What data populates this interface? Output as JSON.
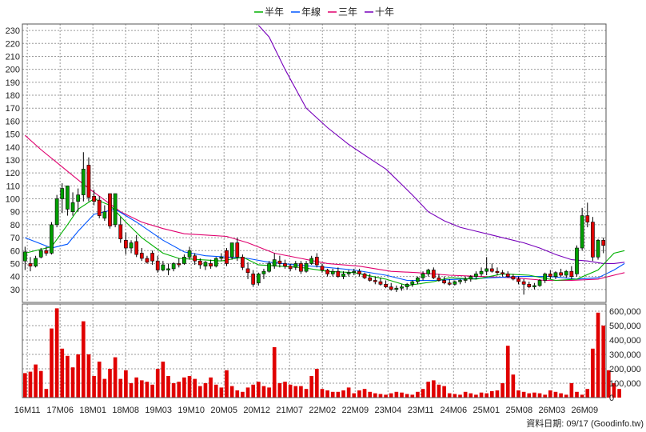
{
  "chart_data": {
    "type": "candlestick",
    "legend": [
      {
        "name": "半年",
        "color": "#00b000"
      },
      {
        "name": "年線",
        "color": "#0055ff"
      },
      {
        "name": "三年",
        "color": "#e0006e"
      },
      {
        "name": "十年",
        "color": "#7700bb"
      }
    ],
    "x_ticks": [
      "16M11",
      "17M06",
      "18M01",
      "18M08",
      "19M03",
      "19M10",
      "20M05",
      "20M12",
      "21M07",
      "22M02",
      "22M09",
      "23M04",
      "23M11",
      "24M06",
      "25M01",
      "25M08",
      "26M03",
      "26M09"
    ],
    "price_axis": {
      "ylim": [
        20,
        235
      ],
      "ticks": [
        30,
        40,
        50,
        60,
        70,
        80,
        90,
        100,
        110,
        120,
        130,
        140,
        150,
        160,
        170,
        180,
        190,
        200,
        210,
        220,
        230
      ]
    },
    "volume_axis": {
      "ylim": [
        0,
        650000
      ],
      "ticks": [
        0,
        100000,
        200000,
        300000,
        400000,
        500000,
        600000
      ],
      "tick_labels": [
        "0",
        "100,000",
        "200,000",
        "300,000",
        "400,000",
        "500,000",
        "600,000"
      ]
    },
    "footer": "資料日期: 09/17  (Goodinfo.tw)",
    "colors": {
      "up": "#00a000",
      "down": "#e00000",
      "volume": "#e00000",
      "grid": "#9a9a9a"
    },
    "candles": [
      {
        "o": 52,
        "h": 63,
        "l": 45,
        "c": 59
      },
      {
        "o": 50,
        "h": 55,
        "l": 44,
        "c": 48
      },
      {
        "o": 48,
        "h": 56,
        "l": 47,
        "c": 54
      },
      {
        "o": 55,
        "h": 62,
        "l": 54,
        "c": 60
      },
      {
        "o": 60,
        "h": 63,
        "l": 56,
        "c": 58
      },
      {
        "o": 58,
        "h": 82,
        "l": 57,
        "c": 80
      },
      {
        "o": 80,
        "h": 103,
        "l": 78,
        "c": 100
      },
      {
        "o": 100,
        "h": 112,
        "l": 89,
        "c": 108
      },
      {
        "o": 92,
        "h": 110,
        "l": 87,
        "c": 110
      },
      {
        "o": 90,
        "h": 105,
        "l": 87,
        "c": 97
      },
      {
        "o": 98,
        "h": 108,
        "l": 90,
        "c": 103
      },
      {
        "o": 103,
        "h": 136,
        "l": 98,
        "c": 123
      },
      {
        "o": 126,
        "h": 132,
        "l": 98,
        "c": 101
      },
      {
        "o": 102,
        "h": 107,
        "l": 95,
        "c": 98
      },
      {
        "o": 99,
        "h": 102,
        "l": 85,
        "c": 87
      },
      {
        "o": 85,
        "h": 95,
        "l": 83,
        "c": 90
      },
      {
        "o": 104,
        "h": 104,
        "l": 77,
        "c": 79
      },
      {
        "o": 80,
        "h": 104,
        "l": 78,
        "c": 104
      },
      {
        "o": 80,
        "h": 86,
        "l": 66,
        "c": 69
      },
      {
        "o": 68,
        "h": 74,
        "l": 57,
        "c": 62
      },
      {
        "o": 62,
        "h": 68,
        "l": 58,
        "c": 66
      },
      {
        "o": 67,
        "h": 72,
        "l": 55,
        "c": 57
      },
      {
        "o": 58,
        "h": 62,
        "l": 52,
        "c": 54
      },
      {
        "o": 54,
        "h": 56,
        "l": 50,
        "c": 51
      },
      {
        "o": 58,
        "h": 60,
        "l": 49,
        "c": 52
      },
      {
        "o": 52,
        "h": 56,
        "l": 43,
        "c": 45
      },
      {
        "o": 45,
        "h": 52,
        "l": 44,
        "c": 49
      },
      {
        "o": 45,
        "h": 50,
        "l": 41,
        "c": 46
      },
      {
        "o": 46,
        "h": 51,
        "l": 44,
        "c": 50
      },
      {
        "o": 50,
        "h": 54,
        "l": 47,
        "c": 49
      },
      {
        "o": 50,
        "h": 57,
        "l": 49,
        "c": 55
      },
      {
        "o": 55,
        "h": 63,
        "l": 53,
        "c": 60
      },
      {
        "o": 56,
        "h": 58,
        "l": 49,
        "c": 52
      },
      {
        "o": 52,
        "h": 54,
        "l": 46,
        "c": 49
      },
      {
        "o": 48,
        "h": 52,
        "l": 45,
        "c": 51
      },
      {
        "o": 50,
        "h": 53,
        "l": 46,
        "c": 48
      },
      {
        "o": 48,
        "h": 55,
        "l": 47,
        "c": 54
      },
      {
        "o": 54,
        "h": 58,
        "l": 52,
        "c": 55
      },
      {
        "o": 60,
        "h": 62,
        "l": 48,
        "c": 50
      },
      {
        "o": 55,
        "h": 66,
        "l": 53,
        "c": 66
      },
      {
        "o": 66,
        "h": 70,
        "l": 52,
        "c": 55
      },
      {
        "o": 55,
        "h": 57,
        "l": 45,
        "c": 47
      },
      {
        "o": 46,
        "h": 51,
        "l": 38,
        "c": 43
      },
      {
        "o": 42,
        "h": 45,
        "l": 32,
        "c": 34
      },
      {
        "o": 35,
        "h": 43,
        "l": 33,
        "c": 42
      },
      {
        "o": 42,
        "h": 46,
        "l": 38,
        "c": 44
      },
      {
        "o": 44,
        "h": 52,
        "l": 43,
        "c": 50
      },
      {
        "o": 48,
        "h": 58,
        "l": 46,
        "c": 53
      },
      {
        "o": 52,
        "h": 56,
        "l": 47,
        "c": 50
      },
      {
        "o": 50,
        "h": 53,
        "l": 46,
        "c": 48
      },
      {
        "o": 48,
        "h": 50,
        "l": 44,
        "c": 46
      },
      {
        "o": 47,
        "h": 52,
        "l": 45,
        "c": 50
      },
      {
        "o": 50,
        "h": 52,
        "l": 42,
        "c": 44
      },
      {
        "o": 44,
        "h": 52,
        "l": 43,
        "c": 50
      },
      {
        "o": 50,
        "h": 56,
        "l": 49,
        "c": 54
      },
      {
        "o": 55,
        "h": 58,
        "l": 47,
        "c": 49
      },
      {
        "o": 48,
        "h": 50,
        "l": 43,
        "c": 45
      },
      {
        "o": 45,
        "h": 46,
        "l": 40,
        "c": 42
      },
      {
        "o": 42,
        "h": 46,
        "l": 40,
        "c": 44
      },
      {
        "o": 44,
        "h": 47,
        "l": 39,
        "c": 40
      },
      {
        "o": 40,
        "h": 44,
        "l": 38,
        "c": 42
      },
      {
        "o": 42,
        "h": 45,
        "l": 40,
        "c": 43
      },
      {
        "o": 43,
        "h": 46,
        "l": 41,
        "c": 44
      },
      {
        "o": 44,
        "h": 46,
        "l": 40,
        "c": 42
      },
      {
        "o": 42,
        "h": 43,
        "l": 38,
        "c": 39
      },
      {
        "o": 39,
        "h": 42,
        "l": 36,
        "c": 37
      },
      {
        "o": 37,
        "h": 40,
        "l": 34,
        "c": 36
      },
      {
        "o": 36,
        "h": 39,
        "l": 33,
        "c": 34
      },
      {
        "o": 34,
        "h": 37,
        "l": 31,
        "c": 32
      },
      {
        "o": 32,
        "h": 35,
        "l": 29,
        "c": 30
      },
      {
        "o": 30,
        "h": 33,
        "l": 28,
        "c": 31
      },
      {
        "o": 31,
        "h": 34,
        "l": 29,
        "c": 32
      },
      {
        "o": 32,
        "h": 35,
        "l": 30,
        "c": 34
      },
      {
        "o": 34,
        "h": 37,
        "l": 32,
        "c": 36
      },
      {
        "o": 36,
        "h": 40,
        "l": 34,
        "c": 39
      },
      {
        "o": 39,
        "h": 44,
        "l": 37,
        "c": 42
      },
      {
        "o": 42,
        "h": 46,
        "l": 40,
        "c": 45
      },
      {
        "o": 45,
        "h": 47,
        "l": 38,
        "c": 39
      },
      {
        "o": 39,
        "h": 42,
        "l": 36,
        "c": 37
      },
      {
        "o": 37,
        "h": 40,
        "l": 34,
        "c": 35
      },
      {
        "o": 35,
        "h": 38,
        "l": 33,
        "c": 34
      },
      {
        "o": 34,
        "h": 37,
        "l": 33,
        "c": 36
      },
      {
        "o": 36,
        "h": 38,
        "l": 34,
        "c": 37
      },
      {
        "o": 37,
        "h": 40,
        "l": 35,
        "c": 38
      },
      {
        "o": 38,
        "h": 41,
        "l": 36,
        "c": 40
      },
      {
        "o": 40,
        "h": 44,
        "l": 38,
        "c": 42
      },
      {
        "o": 42,
        "h": 47,
        "l": 40,
        "c": 44
      },
      {
        "o": 44,
        "h": 55,
        "l": 41,
        "c": 46
      },
      {
        "o": 46,
        "h": 50,
        "l": 43,
        "c": 44
      },
      {
        "o": 44,
        "h": 47,
        "l": 41,
        "c": 43
      },
      {
        "o": 43,
        "h": 45,
        "l": 40,
        "c": 42
      },
      {
        "o": 42,
        "h": 44,
        "l": 39,
        "c": 40
      },
      {
        "o": 40,
        "h": 42,
        "l": 37,
        "c": 38
      },
      {
        "o": 38,
        "h": 40,
        "l": 34,
        "c": 36
      },
      {
        "o": 36,
        "h": 38,
        "l": 26,
        "c": 34
      },
      {
        "o": 34,
        "h": 36,
        "l": 31,
        "c": 32
      },
      {
        "o": 32,
        "h": 35,
        "l": 30,
        "c": 33
      },
      {
        "o": 33,
        "h": 38,
        "l": 32,
        "c": 37
      },
      {
        "o": 37,
        "h": 43,
        "l": 35,
        "c": 42
      },
      {
        "o": 42,
        "h": 45,
        "l": 38,
        "c": 40
      },
      {
        "o": 40,
        "h": 44,
        "l": 38,
        "c": 43
      },
      {
        "o": 43,
        "h": 46,
        "l": 40,
        "c": 41
      },
      {
        "o": 41,
        "h": 45,
        "l": 39,
        "c": 44
      },
      {
        "o": 44,
        "h": 48,
        "l": 38,
        "c": 40
      },
      {
        "o": 42,
        "h": 64,
        "l": 40,
        "c": 62
      },
      {
        "o": 62,
        "h": 93,
        "l": 60,
        "c": 87
      },
      {
        "o": 87,
        "h": 97,
        "l": 78,
        "c": 82
      },
      {
        "o": 82,
        "h": 86,
        "l": 52,
        "c": 55
      },
      {
        "o": 55,
        "h": 69,
        "l": 53,
        "c": 68
      },
      {
        "o": 68,
        "h": 70,
        "l": 58,
        "c": 64
      }
    ],
    "volumes": [
      170000,
      180000,
      230000,
      185000,
      60000,
      480000,
      620000,
      340000,
      290000,
      210000,
      300000,
      530000,
      300000,
      150000,
      250000,
      130000,
      200000,
      280000,
      130000,
      190000,
      100000,
      140000,
      120000,
      110000,
      90000,
      200000,
      250000,
      150000,
      100000,
      110000,
      140000,
      150000,
      130000,
      80000,
      100000,
      140000,
      90000,
      70000,
      190000,
      80000,
      50000,
      40000,
      70000,
      90000,
      110000,
      80000,
      70000,
      350000,
      100000,
      110000,
      90000,
      80000,
      80000,
      60000,
      150000,
      200000,
      60000,
      50000,
      40000,
      40000,
      50000,
      70000,
      30000,
      50000,
      60000,
      40000,
      30000,
      25000,
      20000,
      30000,
      40000,
      35000,
      25000,
      20000,
      40000,
      60000,
      110000,
      120000,
      90000,
      80000,
      30000,
      25000,
      20000,
      40000,
      30000,
      20000,
      35000,
      30000,
      45000,
      50000,
      100000,
      360000,
      160000,
      50000,
      40000,
      30000,
      35000,
      30000,
      20000,
      50000,
      40000,
      30000,
      20000,
      100000,
      40000,
      20000,
      60000,
      340000,
      590000,
      500000,
      190000,
      100000,
      60000
    ],
    "ma_half": [
      [
        0,
        58
      ],
      [
        5,
        63
      ],
      [
        8,
        80
      ],
      [
        10,
        92
      ],
      [
        13,
        100
      ],
      [
        16,
        95
      ],
      [
        19,
        82
      ],
      [
        22,
        70
      ],
      [
        26,
        58
      ],
      [
        29,
        54
      ],
      [
        33,
        53
      ],
      [
        37,
        52
      ],
      [
        41,
        55
      ],
      [
        44,
        49
      ],
      [
        48,
        48
      ],
      [
        52,
        47
      ],
      [
        57,
        44
      ],
      [
        62,
        43
      ],
      [
        68,
        38
      ],
      [
        72,
        33
      ],
      [
        77,
        36
      ],
      [
        80,
        39
      ],
      [
        85,
        38
      ],
      [
        90,
        42
      ],
      [
        95,
        41
      ],
      [
        100,
        37
      ],
      [
        104,
        38
      ],
      [
        108,
        45
      ],
      [
        111,
        58
      ],
      [
        113,
        60
      ]
    ],
    "ma_year": [
      [
        0,
        70
      ],
      [
        5,
        62
      ],
      [
        8,
        65
      ],
      [
        10,
        75
      ],
      [
        13,
        88
      ],
      [
        17,
        92
      ],
      [
        21,
        82
      ],
      [
        26,
        68
      ],
      [
        30,
        59
      ],
      [
        34,
        56
      ],
      [
        38,
        55
      ],
      [
        42,
        54
      ],
      [
        46,
        51
      ],
      [
        51,
        49
      ],
      [
        57,
        47
      ],
      [
        62,
        45
      ],
      [
        68,
        41
      ],
      [
        72,
        37
      ],
      [
        77,
        37
      ],
      [
        82,
        38
      ],
      [
        88,
        39
      ],
      [
        93,
        40
      ],
      [
        99,
        40
      ],
      [
        104,
        38
      ],
      [
        108,
        39
      ],
      [
        111,
        45
      ],
      [
        113,
        50
      ]
    ],
    "ma_3y": [
      [
        0,
        149
      ],
      [
        3,
        138
      ],
      [
        6,
        128
      ],
      [
        9,
        118
      ],
      [
        12,
        108
      ],
      [
        15,
        99
      ],
      [
        18,
        90
      ],
      [
        22,
        82
      ],
      [
        26,
        77
      ],
      [
        30,
        73
      ],
      [
        34,
        72
      ],
      [
        38,
        71
      ],
      [
        42,
        66
      ],
      [
        47,
        58
      ],
      [
        52,
        54
      ],
      [
        57,
        50
      ],
      [
        63,
        48
      ],
      [
        69,
        44
      ],
      [
        74,
        43
      ],
      [
        80,
        41
      ],
      [
        86,
        40
      ],
      [
        92,
        39
      ],
      [
        98,
        37
      ],
      [
        103,
        37
      ],
      [
        108,
        38
      ],
      [
        112,
        42
      ],
      [
        113,
        43
      ]
    ],
    "ma_10y": [
      [
        44,
        234
      ],
      [
        46,
        225
      ],
      [
        49,
        200
      ],
      [
        53,
        170
      ],
      [
        57,
        155
      ],
      [
        61,
        142
      ],
      [
        65,
        131
      ],
      [
        68,
        123
      ],
      [
        70,
        115
      ],
      [
        73,
        103
      ],
      [
        76,
        90
      ],
      [
        79,
        83
      ],
      [
        82,
        78
      ],
      [
        85,
        75
      ],
      [
        88,
        72
      ],
      [
        91,
        69
      ],
      [
        94,
        66
      ],
      [
        97,
        62
      ],
      [
        100,
        57
      ],
      [
        103,
        53
      ],
      [
        106,
        52
      ],
      [
        109,
        50
      ],
      [
        111,
        50
      ],
      [
        113,
        51
      ]
    ]
  }
}
